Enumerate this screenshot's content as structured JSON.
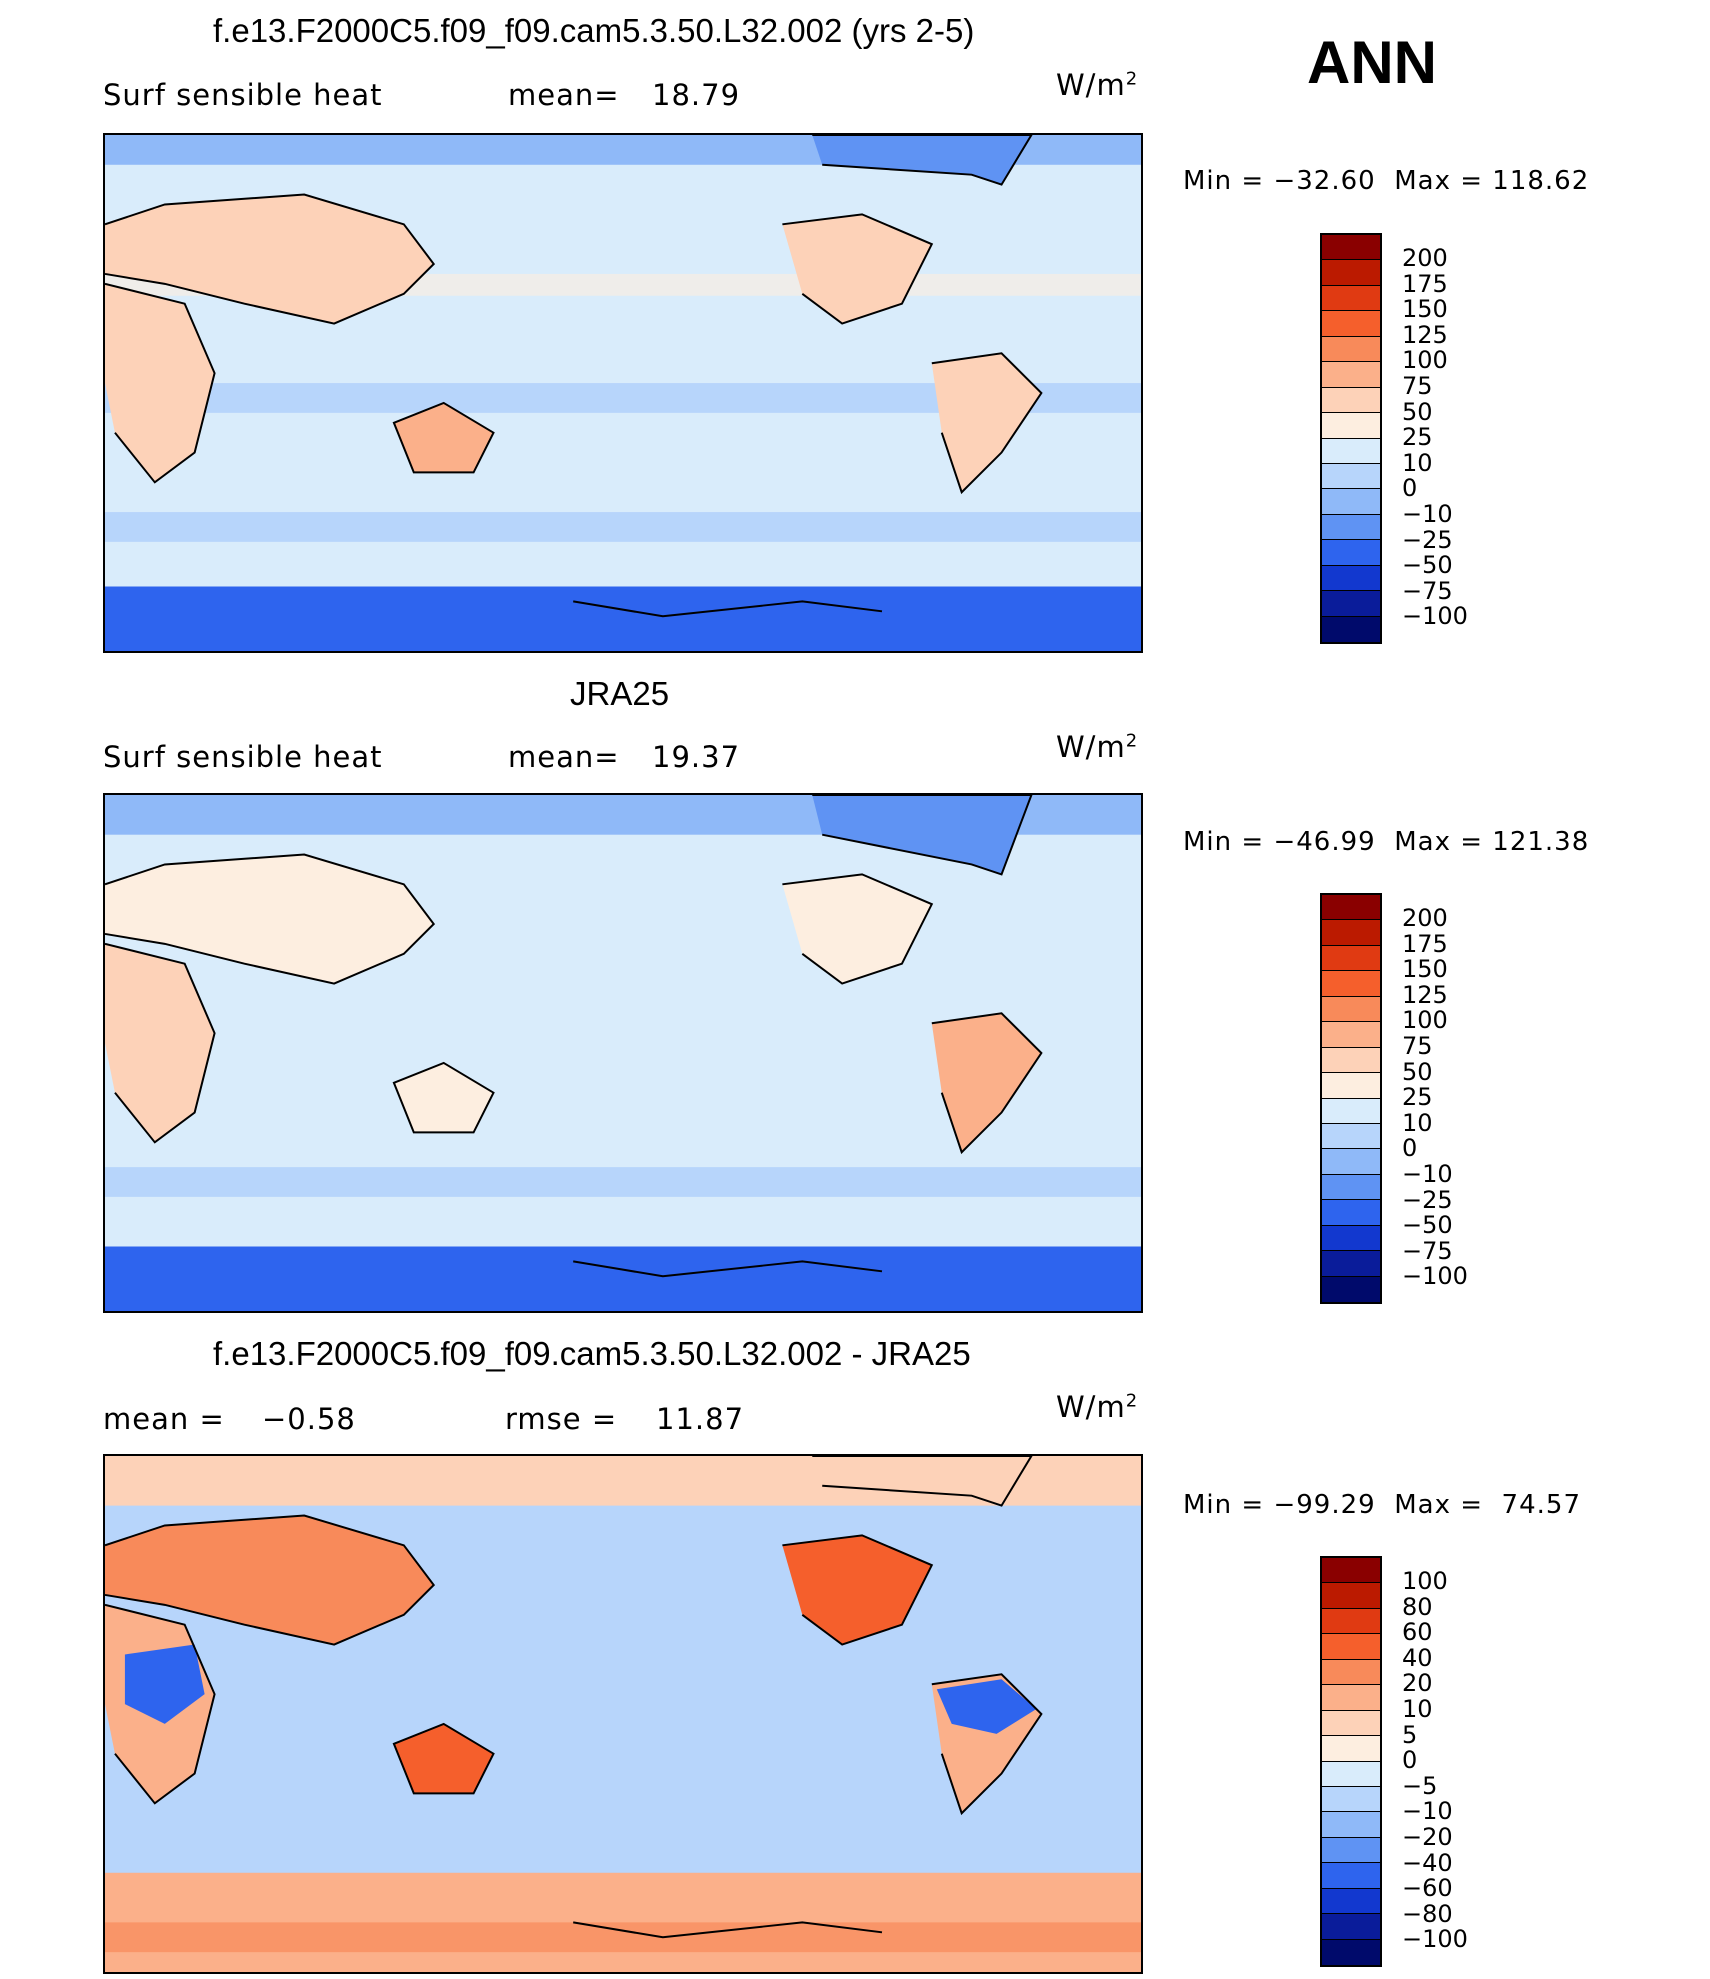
{
  "season": "ANN",
  "units": "W/m",
  "units_sup": "2",
  "panels": [
    {
      "title": "f.e13.F2000C5.f09_f09.cam5.3.50.L32.002 (yrs 2-5)",
      "left_label": "Surf  sensible  heat",
      "stat1_label": "mean=",
      "stat1_value": "18.79",
      "min_label": "Min  =",
      "min_value": "−32.60",
      "max_label": "Max  =",
      "max_value": "118.62",
      "colorbar_labels": [
        "200",
        "175",
        "150",
        "125",
        "100",
        "75",
        "50",
        "25",
        "10",
        "0",
        "−10",
        "−25",
        "−50",
        "−75",
        "−100"
      ],
      "colorbar_colors": [
        "#8a0000",
        "#bb1a00",
        "#e03a12",
        "#f55f2c",
        "#f88a5a",
        "#fbb08a",
        "#fdd2b8",
        "#fdeee0",
        "#d9ecfb",
        "#b7d5fb",
        "#8fb9f8",
        "#5f93f3",
        "#2e64ee",
        "#1238cf",
        "#0a1c9a",
        "#000a6b"
      ],
      "map_fill": "#d9ecfb"
    },
    {
      "title": "JRA25",
      "left_label": "Surf  sensible  heat",
      "stat1_label": "mean=",
      "stat1_value": "19.37",
      "min_label": "Min  =",
      "min_value": "−46.99",
      "max_label": "Max  =",
      "max_value": "121.38",
      "colorbar_labels": [
        "200",
        "175",
        "150",
        "125",
        "100",
        "75",
        "50",
        "25",
        "10",
        "0",
        "−10",
        "−25",
        "−50",
        "−75",
        "−100"
      ],
      "colorbar_colors": [
        "#8a0000",
        "#bb1a00",
        "#e03a12",
        "#f55f2c",
        "#f88a5a",
        "#fbb08a",
        "#fdd2b8",
        "#fdeee0",
        "#d9ecfb",
        "#b7d5fb",
        "#8fb9f8",
        "#5f93f3",
        "#2e64ee",
        "#1238cf",
        "#0a1c9a",
        "#000a6b"
      ],
      "map_fill": "#d9ecfb"
    },
    {
      "title": "f.e13.F2000C5.f09_f09.cam5.3.50.L32.002 - JRA25",
      "left_label": "mean  =",
      "left_value": "−0.58",
      "stat1_label": "rmse  =",
      "stat1_value": "11.87",
      "min_label": "Min  =",
      "min_value": "−99.29",
      "max_label": "Max  =",
      "max_value": "74.57",
      "colorbar_labels": [
        "100",
        "80",
        "60",
        "40",
        "20",
        "10",
        "5",
        "0",
        "−5",
        "−10",
        "−20",
        "−40",
        "−60",
        "−80",
        "−100"
      ],
      "colorbar_colors": [
        "#8a0000",
        "#bb1a00",
        "#e03a12",
        "#f55f2c",
        "#f88a5a",
        "#fbb08a",
        "#fdd2b8",
        "#fdeee0",
        "#d9ecfb",
        "#b7d5fb",
        "#8fb9f8",
        "#5f93f3",
        "#2e64ee",
        "#1238cf",
        "#0a1c9a",
        "#000a6b"
      ],
      "map_fill": "#b7d5fb"
    }
  ]
}
